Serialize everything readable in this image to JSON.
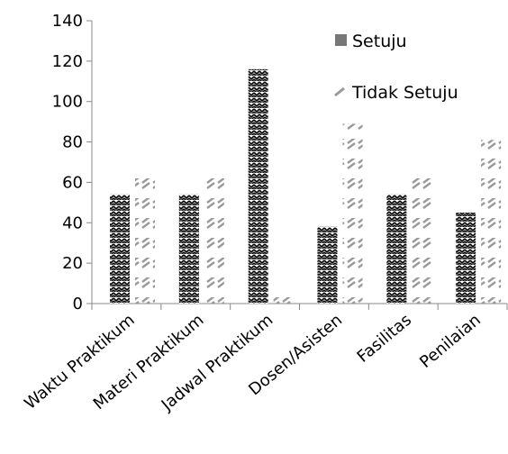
{
  "chart_data": {
    "type": "bar",
    "title": "",
    "xlabel": "",
    "ylabel": "",
    "categories": [
      "Waktu Praktikum",
      "Materi Praktikum",
      "Jadwal Praktikum",
      "Dosen/Asisten",
      "Fasilitas",
      "Penilaian"
    ],
    "series": [
      {
        "name": "Setuju",
        "values": [
          54,
          54,
          116,
          38,
          54,
          45
        ],
        "pattern": "zigzag",
        "color": "#000000"
      },
      {
        "name": "Tidak Setuju",
        "values": [
          63,
          63,
          0,
          89,
          63,
          81
        ],
        "pattern": "dashes",
        "color": "#9a9a9a"
      }
    ],
    "ylim": [
      0,
      140
    ],
    "yticks": [
      0,
      20,
      40,
      60,
      80,
      100,
      120,
      140
    ],
    "grid": false,
    "legend_position": "top-right"
  }
}
